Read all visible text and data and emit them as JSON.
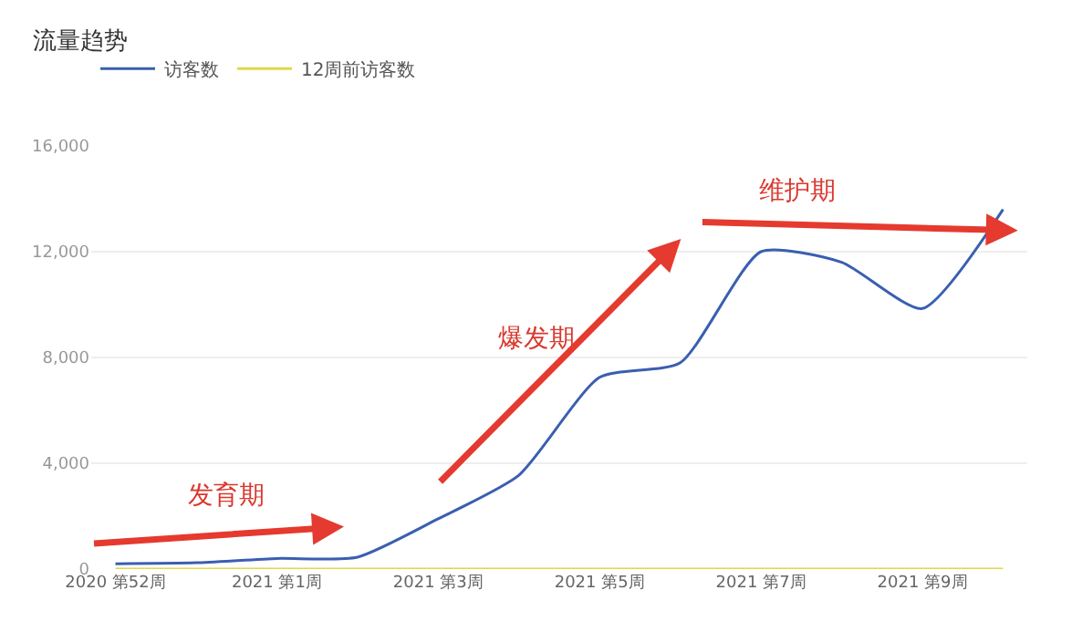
{
  "chart_data": {
    "type": "line",
    "title": "流量趋势",
    "categories": [
      "2020 第52周",
      null,
      "2021 第1周",
      null,
      "2021 第3周",
      null,
      "2021 第5周",
      null,
      "2021 第7周",
      null,
      "2021 第9周",
      null
    ],
    "series": [
      {
        "name": "访客数",
        "color": "#3a5fb0",
        "values": [
          200,
          240,
          400,
          450,
          1900,
          3550,
          7250,
          7800,
          12000,
          11600,
          9850,
          13600
        ]
      },
      {
        "name": "12周前访客数",
        "color": "#e0d84a",
        "values": [
          0,
          0,
          0,
          0,
          0,
          0,
          0,
          0,
          0,
          0,
          0,
          0
        ]
      }
    ],
    "ylim": [
      0,
      16000
    ],
    "yticks": [
      {
        "value": 0,
        "label": "0"
      },
      {
        "value": 4000,
        "label": "4,000"
      },
      {
        "value": 8000,
        "label": "8,000"
      },
      {
        "value": 12000,
        "label": "12,000"
      },
      {
        "value": 16000,
        "label": "16,000"
      }
    ],
    "annotations": [
      "发育期",
      "爆发期",
      "维护期"
    ],
    "grid": "y",
    "legend": "top left",
    "marker": "none",
    "line_style": "solid"
  }
}
